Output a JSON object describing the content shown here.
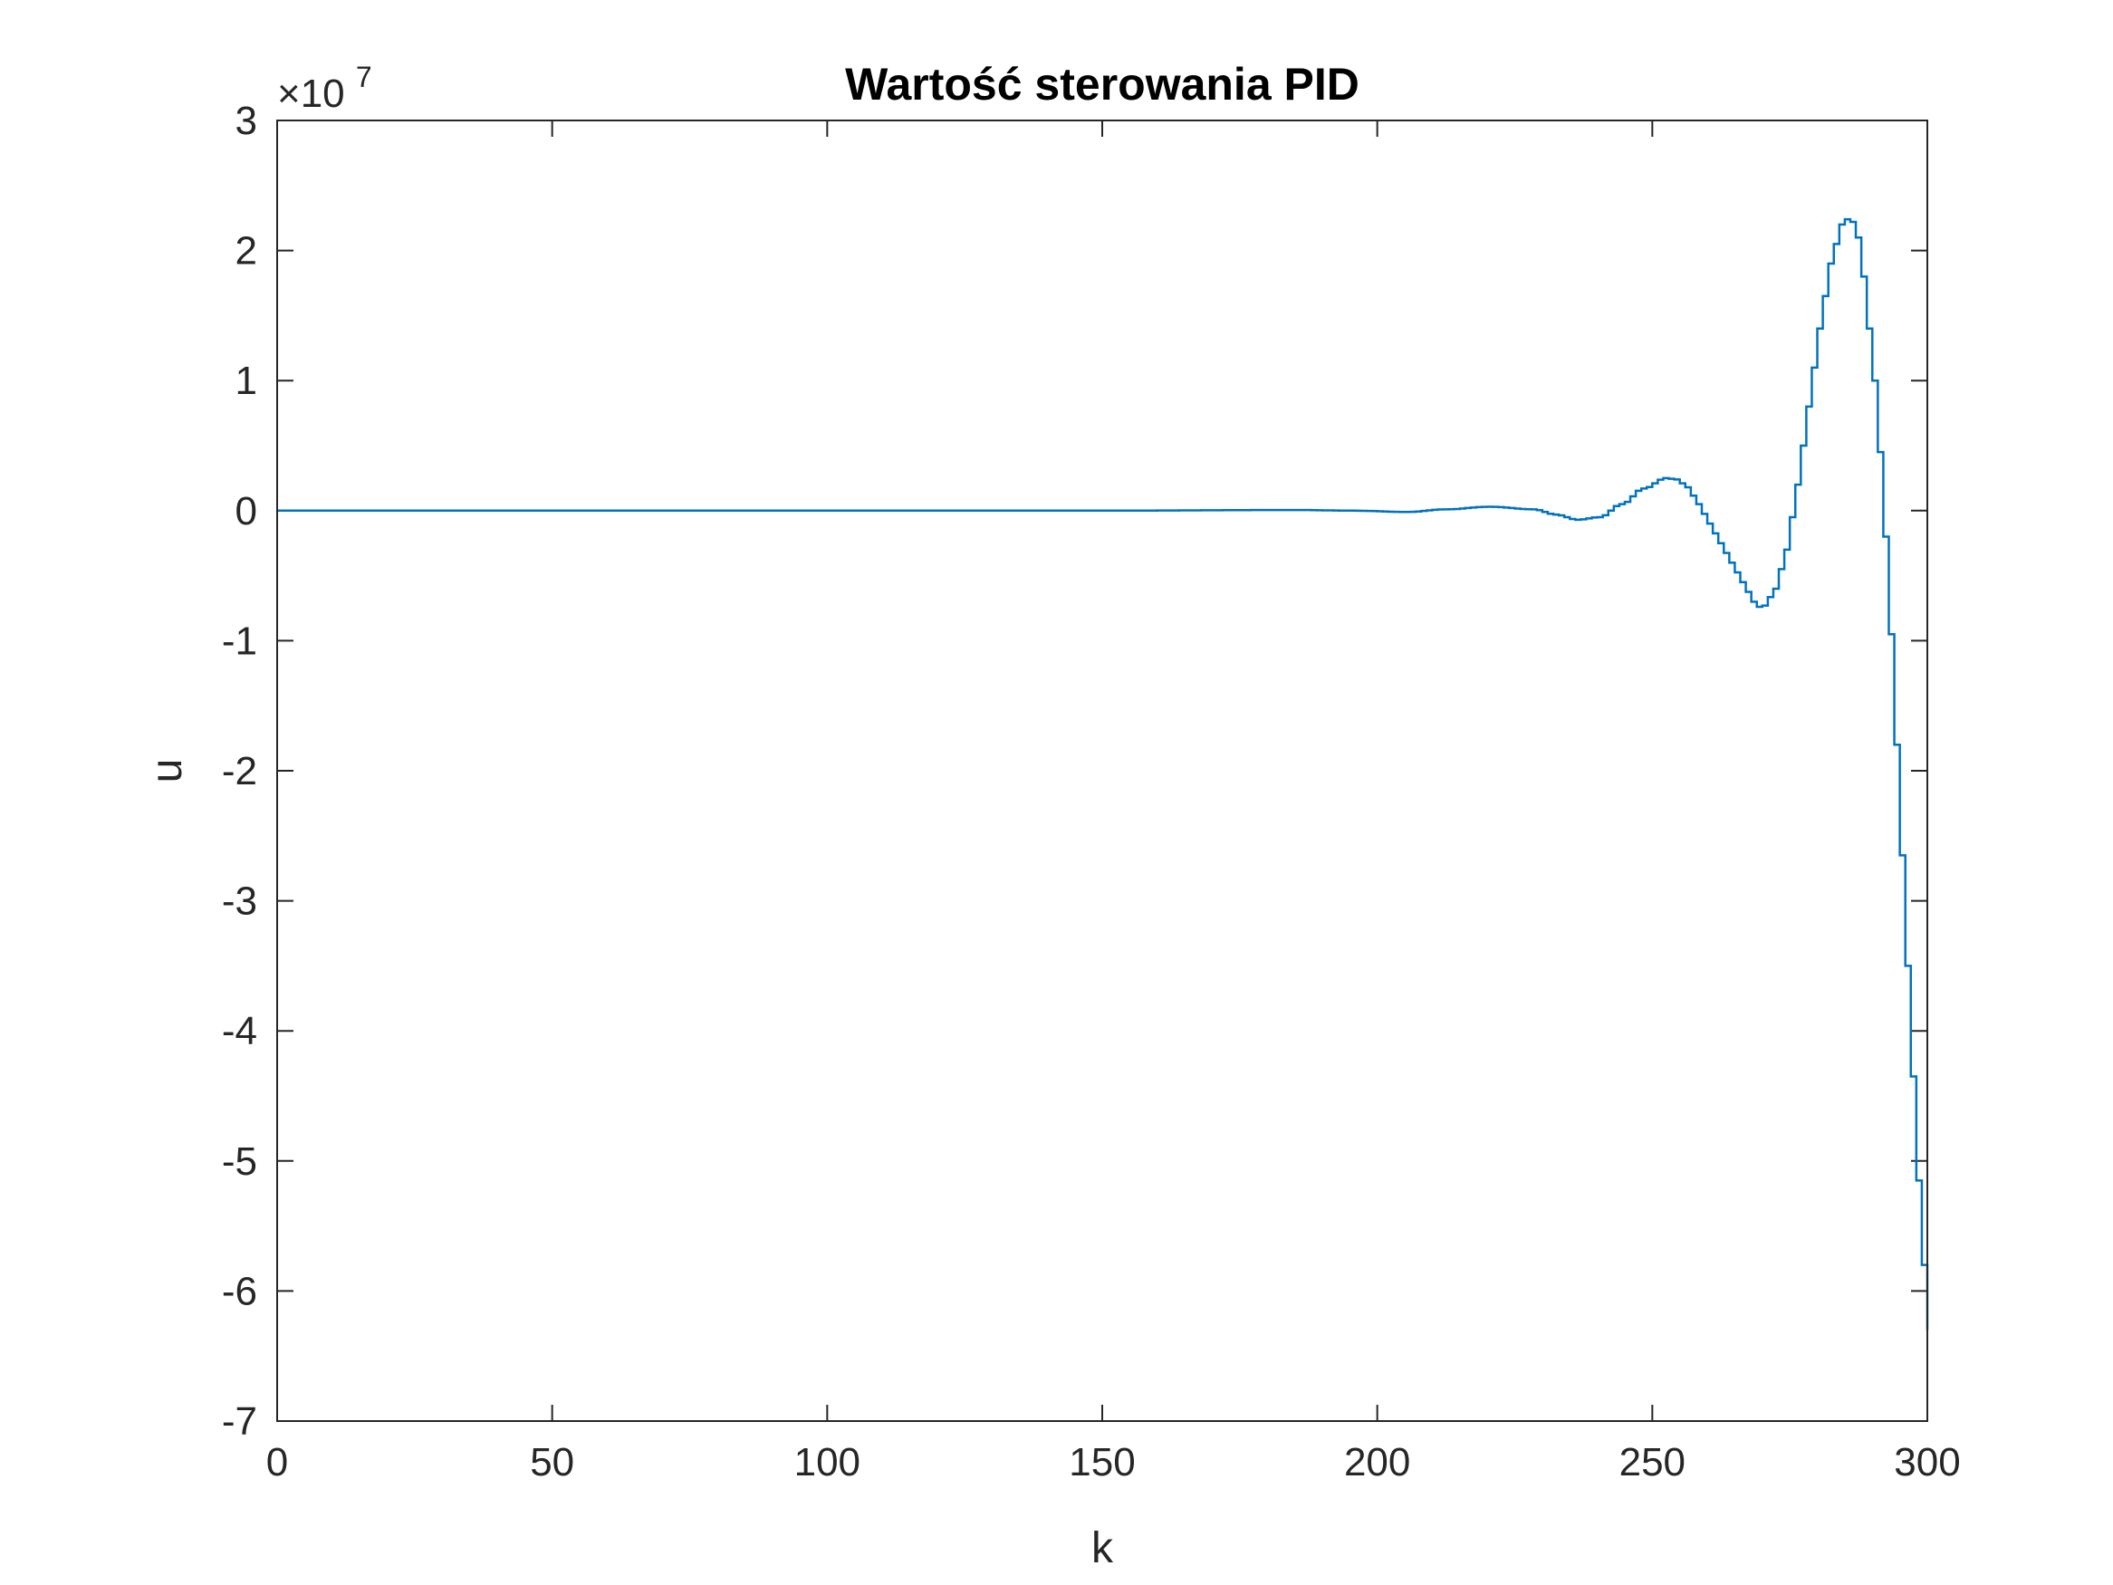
{
  "chart_data": {
    "type": "line",
    "title": "Wartość sterowania PID",
    "xlabel": "k",
    "ylabel": "u",
    "xlim": [
      0,
      300
    ],
    "ylim": [
      -7,
      3
    ],
    "y_scale_exponent_label": "×10",
    "y_scale_exponent": "7",
    "x_ticks": [
      0,
      50,
      100,
      150,
      200,
      250,
      300
    ],
    "x_tick_labels": [
      "0",
      "50",
      "100",
      "150",
      "200",
      "250",
      "300"
    ],
    "y_ticks": [
      3,
      2,
      1,
      0,
      -1,
      -2,
      -3,
      -4,
      -5,
      -6,
      -7
    ],
    "y_tick_labels": [
      "3",
      "2",
      "1",
      "0",
      "-1",
      "-2",
      "-3",
      "-4",
      "-5",
      "-6",
      "-7"
    ],
    "grid": false,
    "line_style": "stairs",
    "line_color": "#0072BD",
    "y_multiplier": 10000000,
    "series": [
      {
        "k": [
          0,
          150,
          185,
          195,
          205,
          212,
          220,
          228,
          232,
          236,
          240,
          244,
          248,
          252,
          254,
          256,
          258,
          260,
          262,
          264,
          266,
          268,
          269,
          270,
          272,
          274,
          276,
          278,
          280,
          282,
          284,
          285,
          286,
          287,
          288,
          290,
          291,
          292,
          293,
          294,
          295,
          296,
          297,
          298,
          299,
          300
        ],
        "u": [
          0,
          0,
          0.005,
          0.0,
          -0.01,
          0.01,
          0.03,
          0.01,
          -0.03,
          -0.07,
          -0.05,
          0.05,
          0.17,
          0.25,
          0.24,
          0.18,
          0.05,
          -0.1,
          -0.25,
          -0.4,
          -0.55,
          -0.7,
          -0.74,
          -0.73,
          -0.6,
          -0.3,
          0.2,
          0.8,
          1.4,
          1.9,
          2.2,
          2.24,
          2.22,
          2.1,
          1.8,
          1.0,
          0.45,
          -0.2,
          -0.95,
          -1.8,
          -2.65,
          -3.5,
          -4.35,
          -5.15,
          -5.8,
          -6.3
        ]
      }
    ]
  }
}
